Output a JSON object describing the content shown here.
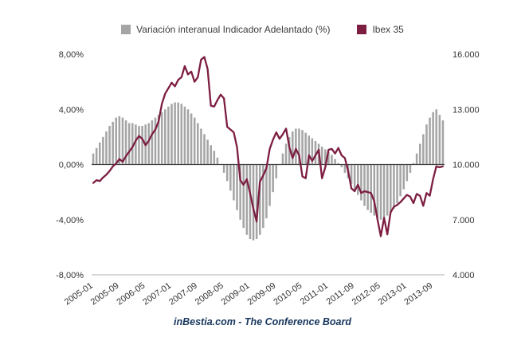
{
  "chart_data": {
    "type": "bar",
    "subtype": "bar+line combo, dual y-axes",
    "x_tick_labels": [
      "2005-01",
      "2005-09",
      "2006-05",
      "2007-01",
      "2007-09",
      "2008-05",
      "2009-01",
      "2009-09",
      "2010-05",
      "2011-01",
      "2011-09",
      "2012-05",
      "2013-01",
      "2013-09"
    ],
    "x_tick_step_months": 8,
    "series": [
      {
        "name": "Variación interanual Indicador Adelantado (%)",
        "type": "bar",
        "axis": "left",
        "color": "#a5a5a5",
        "values": [
          0.8,
          1.2,
          1.6,
          2.0,
          2.4,
          2.8,
          3.1,
          3.4,
          3.5,
          3.4,
          3.2,
          3.0,
          3.0,
          2.9,
          2.8,
          2.8,
          2.9,
          3.0,
          3.2,
          3.4,
          3.6,
          3.8,
          4.0,
          4.2,
          4.4,
          4.5,
          4.5,
          4.4,
          4.2,
          4.0,
          3.7,
          3.4,
          3.0,
          2.6,
          2.2,
          1.8,
          1.4,
          1.0,
          0.5,
          0.0,
          -0.6,
          -1.2,
          -1.9,
          -2.6,
          -3.3,
          -4.0,
          -4.6,
          -5.1,
          -5.4,
          -5.5,
          -5.4,
          -5.1,
          -4.6,
          -3.9,
          -3.0,
          -2.0,
          -1.0,
          0.0,
          0.8,
          1.5,
          2.0,
          2.4,
          2.6,
          2.6,
          2.5,
          2.3,
          2.1,
          1.9,
          1.7,
          1.5,
          1.3,
          1.1,
          0.9,
          0.7,
          0.4,
          0.1,
          -0.2,
          -0.6,
          -1.0,
          -1.4,
          -1.8,
          -2.2,
          -2.6,
          -3.0,
          -3.3,
          -3.5,
          -3.7,
          -3.9,
          -4.0,
          -3.9,
          -3.7,
          -3.5,
          -3.2,
          -2.8,
          -2.3,
          -1.8,
          -1.2,
          -0.6,
          0.1,
          0.8,
          1.5,
          2.2,
          2.9,
          3.4,
          3.8,
          4.0,
          3.6,
          3.2
        ]
      },
      {
        "name": "Ibex 35",
        "type": "line",
        "axis": "right",
        "color": "#7d1d42",
        "values": [
          9000,
          9150,
          9100,
          9300,
          9450,
          9650,
          9900,
          10050,
          10300,
          10150,
          10450,
          10700,
          10950,
          11300,
          11550,
          11400,
          11050,
          11300,
          11650,
          11900,
          12350,
          13300,
          13850,
          14150,
          14450,
          14250,
          14600,
          14750,
          15350,
          14900,
          15050,
          14500,
          14750,
          15700,
          15850,
          15200,
          13200,
          13150,
          13500,
          13800,
          13600,
          12050,
          11900,
          11750,
          10950,
          9150,
          8900,
          9200,
          8450,
          7600,
          6900,
          9050,
          9400,
          9800,
          10850,
          11350,
          11750,
          11400,
          11650,
          11950,
          10950,
          10350,
          10850,
          10500,
          9350,
          9250,
          10500,
          10200,
          10500,
          10800,
          9250,
          9850,
          10800,
          10850,
          10600,
          10900,
          10500,
          10350,
          9650,
          8700,
          8550,
          8900,
          8450,
          8550,
          8500,
          8450,
          8000,
          7000,
          6100,
          7100,
          6200,
          7400,
          7700,
          7800,
          7950,
          8150,
          8350,
          8250,
          7900,
          8400,
          8300,
          7750,
          8450,
          8300,
          9200,
          9900,
          9850,
          9900
        ]
      }
    ],
    "left_axis": {
      "min": -8,
      "max": 8,
      "tick_values": [
        8,
        4,
        0,
        -4,
        -8
      ],
      "tick_labels": [
        "8,00%",
        "4,00%",
        "0,00%",
        "-4,00%",
        "-8,00%"
      ]
    },
    "right_axis": {
      "min": 4000,
      "max": 16000,
      "tick_values": [
        16000,
        13000,
        10000,
        7000,
        4000
      ],
      "tick_labels": [
        "16.000",
        "13.000",
        "10.000",
        "7.000",
        "4.000"
      ]
    },
    "legend_position": "top-center",
    "grid": false,
    "footer": "inBestia.com - The Conference Board"
  }
}
